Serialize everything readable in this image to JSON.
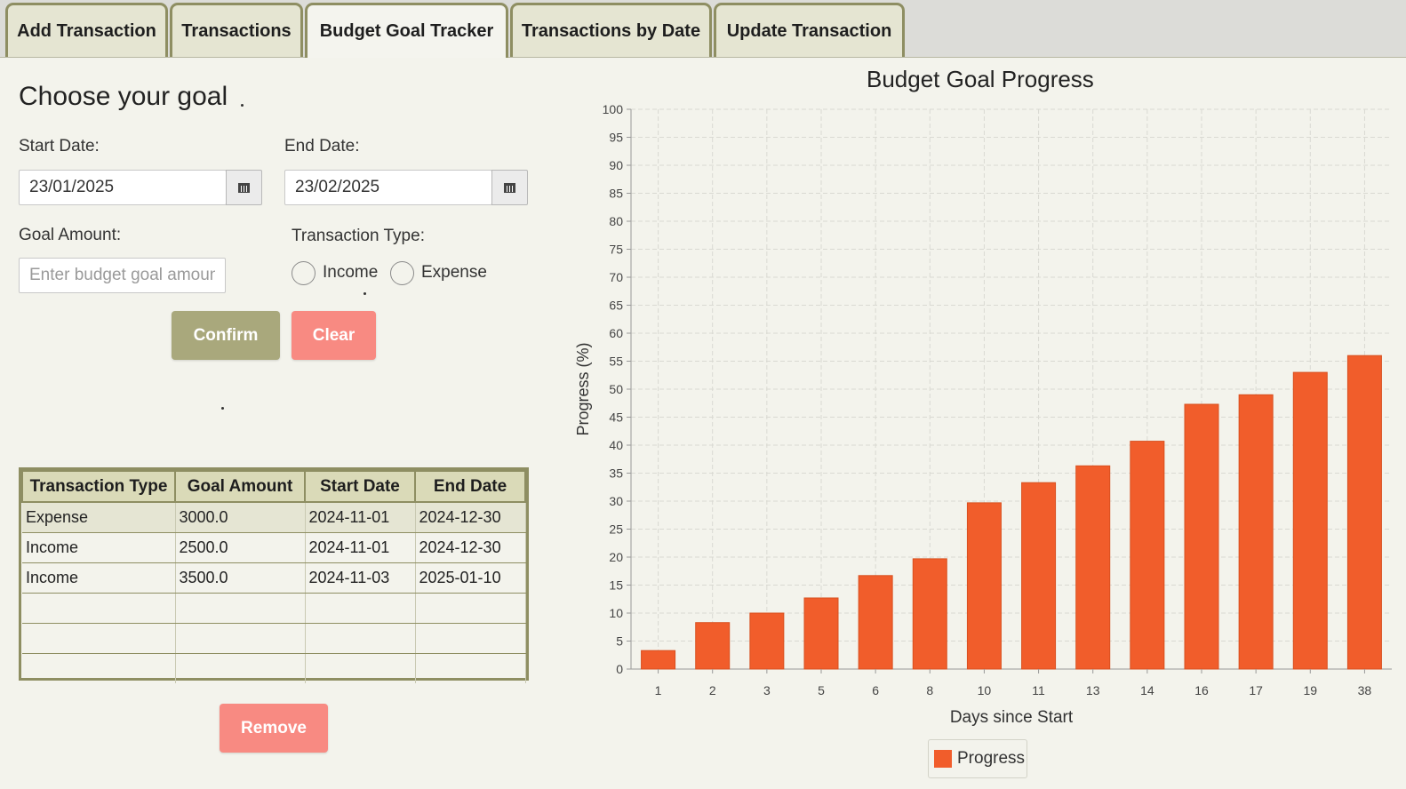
{
  "tabs": [
    {
      "label": "Add Transaction"
    },
    {
      "label": "Transactions"
    },
    {
      "label": "Budget Goal Tracker",
      "active": true
    },
    {
      "label": "Transactions by Date"
    },
    {
      "label": "Update Transaction"
    }
  ],
  "form": {
    "heading": "Choose your goal",
    "start_label": "Start Date:",
    "start_value": "23/01/2025",
    "end_label": "End Date:",
    "end_value": "23/02/2025",
    "goal_label": "Goal Amount:",
    "goal_placeholder": "Enter budget goal amount",
    "type_label": "Transaction Type:",
    "income_label": "Income",
    "expense_label": "Expense",
    "confirm_label": "Confirm",
    "clear_label": "Clear"
  },
  "table": {
    "columns": [
      "Transaction Type",
      "Goal Amount",
      "Start Date",
      "End Date"
    ],
    "rows": [
      [
        "Expense",
        "3000.0",
        "2024-11-01",
        "2024-12-30"
      ],
      [
        "Income",
        "2500.0",
        "2024-11-01",
        "2024-12-30"
      ],
      [
        "Income",
        "3500.0",
        "2024-11-03",
        "2025-01-10"
      ],
      [
        "",
        "",
        "",
        ""
      ],
      [
        "",
        "",
        "",
        ""
      ],
      [
        "",
        "",
        "",
        ""
      ]
    ],
    "selected_row": 0
  },
  "remove_label": "Remove",
  "colors": {
    "bar": "#f15d2b",
    "confirm": "#a9a87c",
    "clear": "#f88a82",
    "tab_border": "#8e8e62"
  },
  "chart_data": {
    "type": "bar",
    "title": "Budget Goal Progress",
    "xlabel": "Days since Start",
    "ylabel": "Progress (%)",
    "categories": [
      "1",
      "2",
      "3",
      "5",
      "6",
      "8",
      "10",
      "11",
      "13",
      "14",
      "16",
      "17",
      "19",
      "38"
    ],
    "series": [
      {
        "name": "Progress",
        "values": [
          3.3,
          8.3,
          10.0,
          12.7,
          16.7,
          19.7,
          29.7,
          33.3,
          36.3,
          40.7,
          47.3,
          49.0,
          53.0,
          56.0
        ]
      }
    ],
    "ylim": [
      0,
      100
    ],
    "ytick_step": 5,
    "grid": true,
    "legend": "bottom-center"
  }
}
